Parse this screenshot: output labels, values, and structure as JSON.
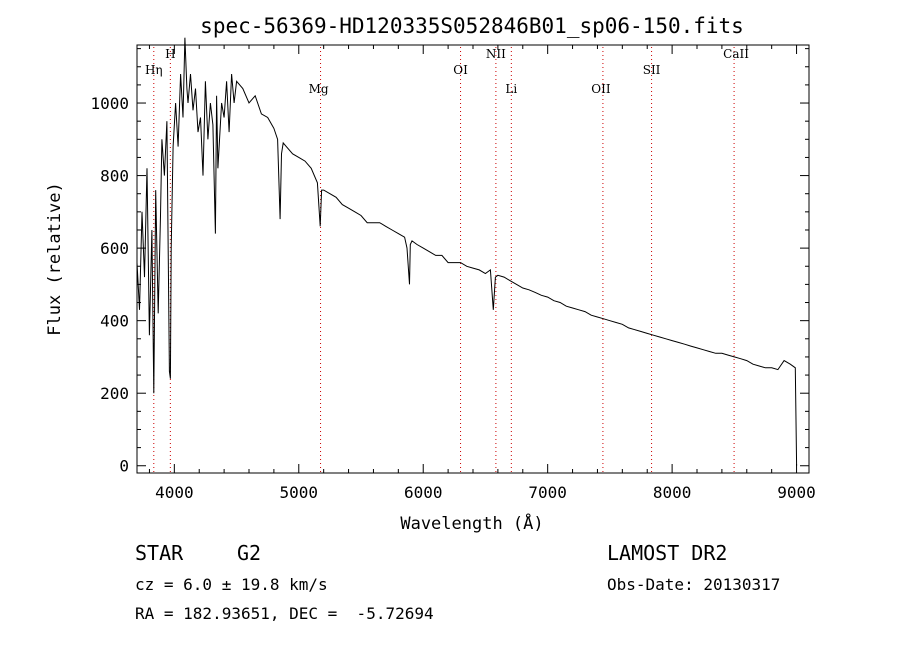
{
  "chart_data": {
    "type": "line",
    "title": "spec-56369-HD120335S052846B01_sp06-150.fits",
    "xlabel": "Wavelength (Å)",
    "ylabel": "Flux (relative)",
    "xlim": [
      3700,
      9100
    ],
    "ylim": [
      -20,
      1160
    ],
    "x_ticks": [
      4000,
      5000,
      6000,
      7000,
      8000,
      9000
    ],
    "x_tick_labels": [
      "4000",
      "5000",
      "6000",
      "7000",
      "8000",
      "9000"
    ],
    "y_ticks": [
      0,
      200,
      400,
      600,
      800,
      1000
    ],
    "y_tick_labels": [
      "0",
      "200",
      "400",
      "600",
      "800",
      "1000"
    ],
    "grid": false,
    "series": [
      {
        "x": [
          3700,
          3720,
          3740,
          3760,
          3780,
          3800,
          3820,
          3835,
          3850,
          3870,
          3889,
          3900,
          3920,
          3940,
          3960,
          3968,
          3975,
          3990,
          4010,
          4030,
          4050,
          4070,
          4085,
          4101,
          4110,
          4130,
          4150,
          4170,
          4190,
          4210,
          4230,
          4250,
          4270,
          4290,
          4310,
          4330,
          4340,
          4350,
          4380,
          4400,
          4420,
          4440,
          4460,
          4480,
          4500,
          4550,
          4600,
          4650,
          4700,
          4750,
          4800,
          4830,
          4850,
          4861,
          4875,
          4900,
          4950,
          5000,
          5050,
          5100,
          5150,
          5172,
          5183,
          5200,
          5250,
          5300,
          5350,
          5400,
          5450,
          5500,
          5550,
          5600,
          5650,
          5700,
          5750,
          5800,
          5850,
          5870,
          5890,
          5896,
          5910,
          5950,
          6000,
          6050,
          6100,
          6150,
          6200,
          6250,
          6300,
          6350,
          6400,
          6450,
          6500,
          6540,
          6563,
          6580,
          6600,
          6650,
          6700,
          6750,
          6800,
          6850,
          6900,
          6950,
          7000,
          7050,
          7100,
          7150,
          7200,
          7250,
          7300,
          7350,
          7400,
          7450,
          7500,
          7550,
          7600,
          7650,
          7700,
          7750,
          7800,
          7850,
          7900,
          7950,
          8000,
          8050,
          8100,
          8150,
          8200,
          8250,
          8300,
          8350,
          8400,
          8450,
          8500,
          8550,
          8600,
          8650,
          8700,
          8750,
          8800,
          8850,
          8900,
          8950,
          8990,
          9000
        ],
        "y": [
          560,
          430,
          700,
          520,
          820,
          360,
          650,
          200,
          760,
          420,
          690,
          900,
          800,
          950,
          260,
          240,
          600,
          880,
          1000,
          880,
          1080,
          960,
          1180,
          1040,
          1000,
          1080,
          980,
          1040,
          920,
          960,
          800,
          1060,
          900,
          1000,
          940,
          640,
          1020,
          820,
          1000,
          960,
          1060,
          920,
          1080,
          1000,
          1060,
          1040,
          1000,
          1020,
          970,
          960,
          930,
          900,
          680,
          860,
          890,
          880,
          860,
          850,
          840,
          820,
          780,
          660,
          760,
          760,
          750,
          740,
          720,
          710,
          700,
          690,
          670,
          670,
          670,
          660,
          650,
          640,
          630,
          600,
          500,
          610,
          620,
          610,
          600,
          590,
          580,
          580,
          560,
          560,
          560,
          550,
          545,
          540,
          530,
          540,
          430,
          520,
          525,
          520,
          510,
          500,
          490,
          485,
          478,
          470,
          465,
          455,
          450,
          440,
          435,
          430,
          425,
          415,
          410,
          405,
          400,
          395,
          390,
          380,
          375,
          370,
          365,
          360,
          355,
          350,
          345,
          340,
          335,
          330,
          325,
          320,
          315,
          310,
          310,
          305,
          300,
          295,
          290,
          280,
          275,
          270,
          270,
          265,
          290,
          280,
          270,
          0
        ]
      }
    ],
    "lines": [
      {
        "label": "Hη",
        "x": 3835
      },
      {
        "label": "H",
        "x": 3968
      },
      {
        "label": "Mg",
        "x": 5175
      },
      {
        "label": "OI",
        "x": 6300
      },
      {
        "label": "NII",
        "x": 6584
      },
      {
        "label": "Li",
        "x": 6708
      },
      {
        "label": "OII",
        "x": 7444
      },
      {
        "label": "SII",
        "x": 7835
      },
      {
        "label": "CaII",
        "x": 8498
      }
    ]
  },
  "footer": {
    "object_class": "STAR",
    "subclass": "G2",
    "survey": "LAMOST DR2",
    "redshift": "cz = 6.0 ± 19.8 km/s",
    "obs_date": "Obs-Date: 20130317",
    "coords": "RA = 182.93651, DEC =  -5.72694"
  },
  "colors": {
    "spectrum": "#000000",
    "line_markers": "#cc0000",
    "axes": "#000000"
  }
}
